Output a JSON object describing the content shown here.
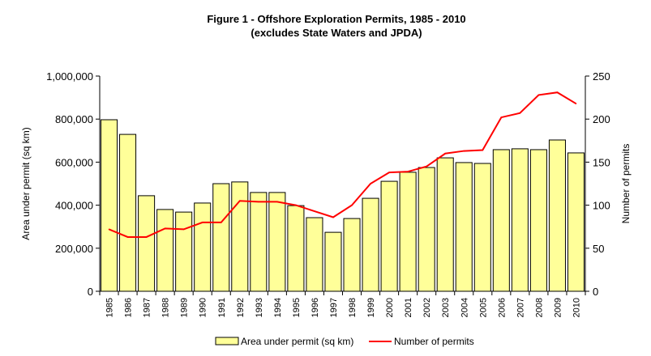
{
  "chart_data": {
    "type": "bar+line",
    "title": "Figure 1 - Offshore Exploration Permits, 1985 - 2010",
    "subtitle": "(excludes State Waters and JPDA)",
    "categories": [
      "1985",
      "1986",
      "1987",
      "1988",
      "1989",
      "1990",
      "1991",
      "1992",
      "1993",
      "1994",
      "1995",
      "1996",
      "1997",
      "1998",
      "1999",
      "2000",
      "2001",
      "2002",
      "2003",
      "2004",
      "2005",
      "2006",
      "2007",
      "2008",
      "2009",
      "2010"
    ],
    "series": [
      {
        "name": "Area under permit (sq km)",
        "type": "bar",
        "axis": "left",
        "color": "#FFFF99",
        "values": [
          797000,
          729000,
          444000,
          380000,
          368000,
          410000,
          500000,
          508000,
          459000,
          459000,
          398000,
          342000,
          274000,
          338000,
          432000,
          511000,
          553000,
          575000,
          620000,
          598000,
          594000,
          658000,
          662000,
          658000,
          703000,
          643000
        ]
      },
      {
        "name": "Number of permits",
        "type": "line",
        "axis": "right",
        "color": "#FF0000",
        "values": [
          72,
          63,
          63,
          73,
          72,
          80,
          80,
          105,
          104,
          104,
          100,
          93,
          86,
          100,
          125,
          138,
          139,
          145,
          160,
          163,
          164,
          202,
          207,
          228,
          231,
          218
        ]
      }
    ],
    "ylabel": "Area under permit (sq km)",
    "y2label": "Number of permits",
    "ylim": [
      0,
      1000000
    ],
    "y2lim": [
      0,
      250
    ],
    "yticks": [
      "0",
      "200,000",
      "400,000",
      "600,000",
      "800,000",
      "1,000,000"
    ],
    "y2ticks": [
      "0",
      "50",
      "100",
      "150",
      "200",
      "250"
    ],
    "grid": false,
    "legend": "bottom"
  }
}
